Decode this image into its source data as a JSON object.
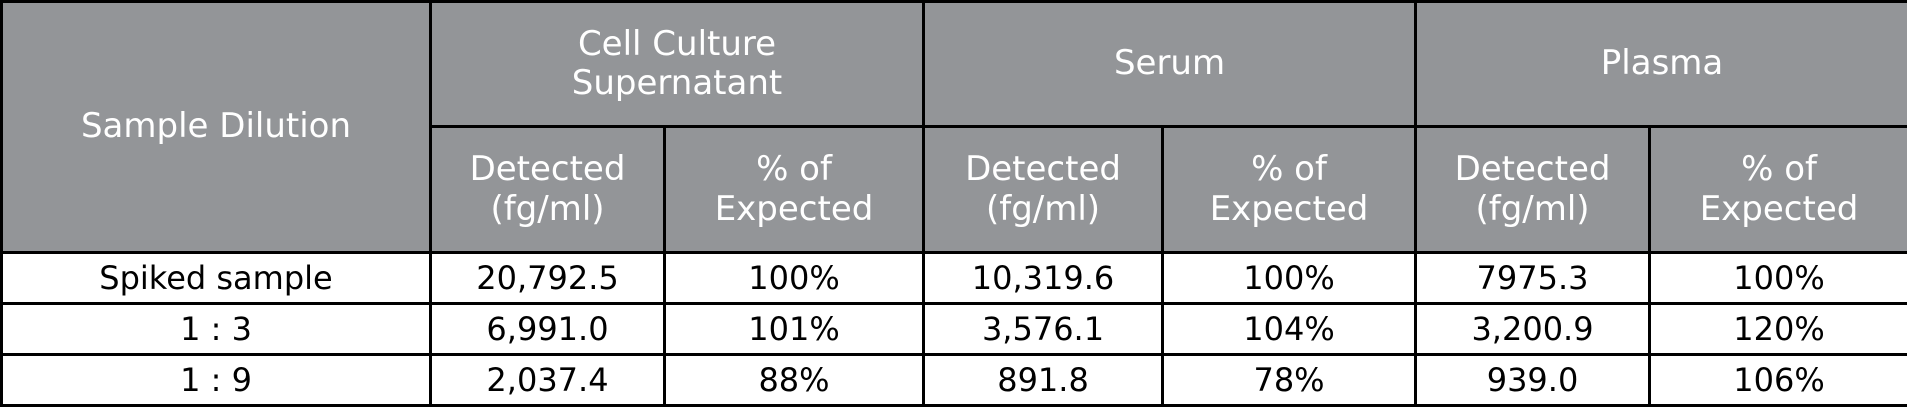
{
  "table": {
    "header": [
      [
        "Sample Dilution",
        "Cell Culture\nSupernatant",
        "Serum",
        "Plasma"
      ],
      [
        "Detected\n(fg/ml)",
        "% of\nExpected",
        "Detected\n(fg/ml)",
        "% of\nExpected",
        "Detected\n(fg/ml)",
        "% of\nExpected"
      ]
    ],
    "rows": [
      [
        "Spiked sample",
        "20,792.5",
        "100%",
        "10,319.6",
        "100%",
        "7975.3",
        "100%"
      ],
      [
        "1 : 3",
        "6,991.0",
        "101%",
        "3,576.1",
        "104%",
        "3,200.9",
        "120%"
      ],
      [
        "1 : 9",
        "2,037.4",
        "88%",
        "891.8",
        "78%",
        "939.0",
        "106%"
      ]
    ]
  }
}
